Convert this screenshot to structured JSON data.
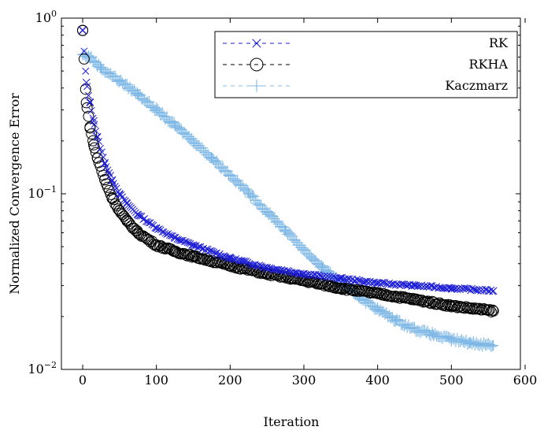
{
  "chart_data": {
    "type": "line",
    "xlabel": "Iteration",
    "ylabel": "Normalized Convergence Error",
    "xlim": [
      0,
      600
    ],
    "ylim": [
      0.01,
      1
    ],
    "y_scale": "log",
    "grid": false,
    "legend_position": "top-right",
    "x_ticks": [
      "0",
      "100",
      "200",
      "300",
      "400",
      "500",
      "600"
    ],
    "y_ticks": [
      {
        "base": "10",
        "exp": "0",
        "value": 1
      },
      {
        "base": "10",
        "exp": "−1",
        "value": 0.1
      },
      {
        "base": "10",
        "exp": "−2",
        "value": 0.01
      }
    ],
    "series": [
      {
        "name": "RK",
        "color": "#1f1fd6",
        "marker": "x",
        "x": [
          0,
          5,
          10,
          15,
          20,
          30,
          40,
          50,
          60,
          75,
          100,
          125,
          150,
          200,
          250,
          300,
          350,
          400,
          450,
          500,
          557
        ],
        "y": [
          0.85,
          0.43,
          0.33,
          0.26,
          0.21,
          0.15,
          0.12,
          0.1,
          0.088,
          0.076,
          0.064,
          0.056,
          0.051,
          0.043,
          0.038,
          0.035,
          0.033,
          0.031,
          0.03,
          0.029,
          0.028
        ]
      },
      {
        "name": "RKHA",
        "color": "#000000",
        "marker": "o",
        "x": [
          0,
          5,
          10,
          15,
          20,
          30,
          40,
          50,
          60,
          75,
          100,
          125,
          150,
          200,
          250,
          300,
          350,
          400,
          450,
          500,
          557
        ],
        "y": [
          0.85,
          0.33,
          0.24,
          0.19,
          0.16,
          0.12,
          0.095,
          0.08,
          0.07,
          0.06,
          0.051,
          0.047,
          0.044,
          0.039,
          0.035,
          0.032,
          0.029,
          0.027,
          0.025,
          0.023,
          0.0215
        ]
      },
      {
        "name": "Kaczmarz",
        "color": "#7fb8e6",
        "marker": "+",
        "x": [
          0,
          10,
          25,
          50,
          75,
          100,
          125,
          150,
          175,
          200,
          225,
          250,
          275,
          300,
          325,
          350,
          375,
          400,
          425,
          450,
          475,
          500,
          525,
          557
        ],
        "y": [
          0.62,
          0.6,
          0.52,
          0.44,
          0.37,
          0.3,
          0.245,
          0.2,
          0.16,
          0.128,
          0.101,
          0.079,
          0.062,
          0.048,
          0.038,
          0.031,
          0.026,
          0.022,
          0.019,
          0.017,
          0.0158,
          0.0148,
          0.0142,
          0.0137
        ]
      }
    ]
  }
}
